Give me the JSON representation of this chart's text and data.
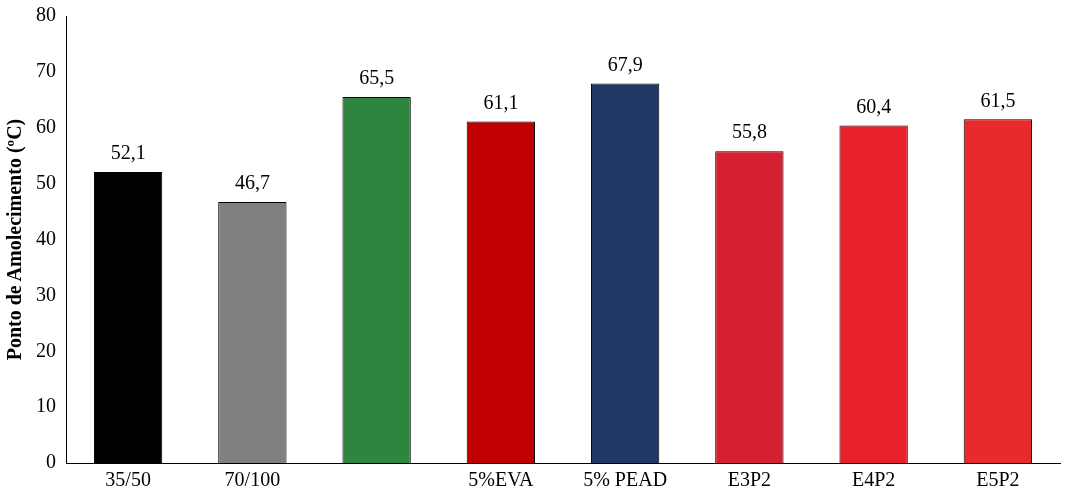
{
  "chart_data": {
    "type": "bar",
    "ylabel": "Ponto de Amolecimento (ºC)",
    "categories": [
      "35/50",
      "70/100",
      null,
      "5%EVA",
      "5% PEAD",
      "E3P2",
      "E4P2",
      "E5P2"
    ],
    "values": [
      52.1,
      46.7,
      65.5,
      61.1,
      67.9,
      55.8,
      60.4,
      61.5
    ],
    "colors": [
      "#000000",
      "#808080",
      "#2e8540",
      "#c00000",
      "#1f3864",
      "#d42030",
      "#e8202a",
      "#e82a2a"
    ],
    "value_labels": [
      "52,1",
      "46,7",
      "65,5",
      "61,1",
      "67,9",
      "55,8",
      "60,4",
      "61,5"
    ],
    "ylim": [
      0,
      80
    ],
    "yticks": [
      0,
      10,
      20,
      30,
      40,
      50,
      60,
      70,
      80
    ],
    "grid": false,
    "legend": false
  }
}
